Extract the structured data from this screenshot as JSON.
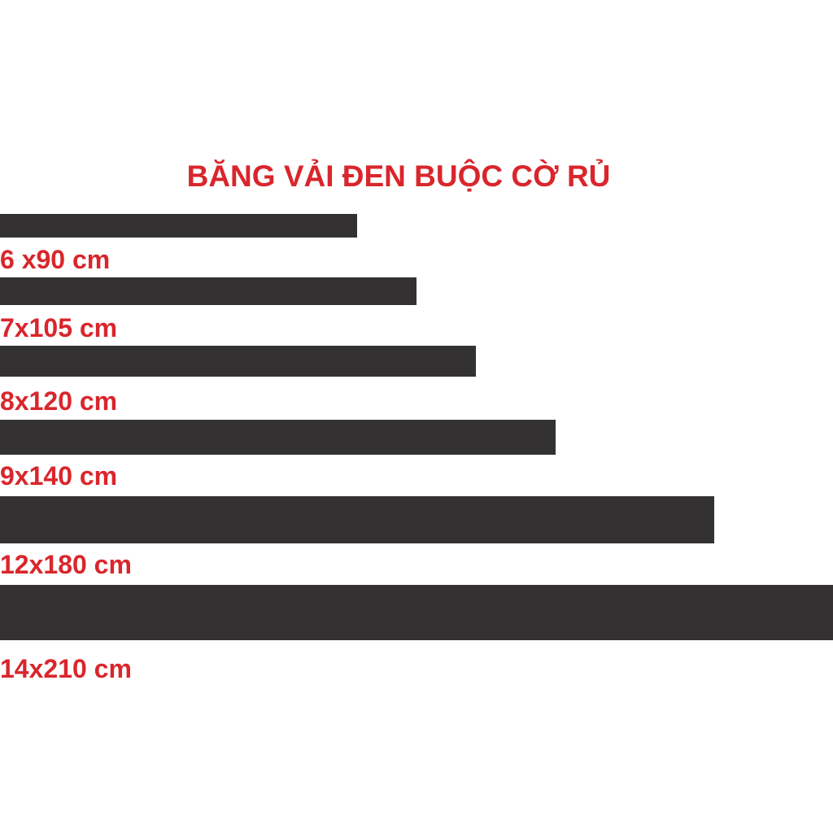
{
  "title": "BĂNG VẢI ĐEN BUỘC CỜ RỦ",
  "items": [
    {
      "label": "6 x90 cm"
    },
    {
      "label": "7x105 cm"
    },
    {
      "label": "8x120 cm"
    },
    {
      "label": "9x140 cm"
    },
    {
      "label": "12x180 cm"
    },
    {
      "label": "14x210 cm"
    }
  ]
}
